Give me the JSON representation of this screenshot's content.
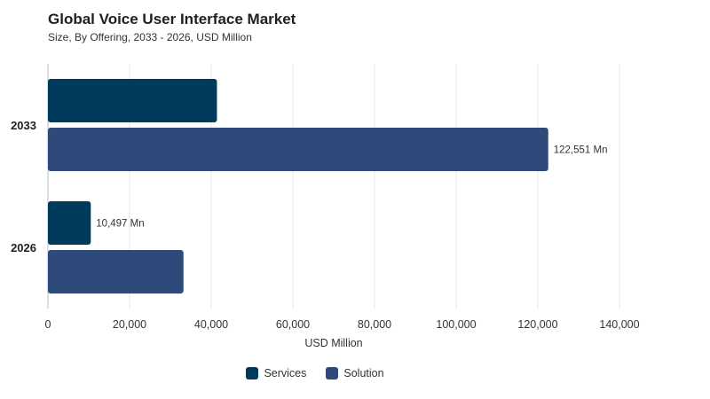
{
  "title": "Global Voice User Interface Market",
  "subtitle": "Size, By Offering, 2033 - 2026, USD Million",
  "colors": {
    "services": "#003b5c",
    "solution": "#2e4a7b"
  },
  "chart_data": {
    "type": "bar",
    "orientation": "horizontal",
    "categories": [
      "2033",
      "2026"
    ],
    "series": [
      {
        "name": "Services",
        "values": [
          41400,
          10497
        ],
        "color": "#003b5c"
      },
      {
        "name": "Solution",
        "values": [
          122551,
          33200
        ],
        "color": "#2e4a7b"
      }
    ],
    "data_labels": [
      {
        "series": "Services",
        "category": "2026",
        "text": "10,497 Mn"
      },
      {
        "series": "Solution",
        "category": "2033",
        "text": "122,551 Mn"
      }
    ],
    "xlabel": "USD Million",
    "ylabel": "",
    "xlim": [
      0,
      140000
    ],
    "xticks": [
      0,
      20000,
      40000,
      60000,
      80000,
      100000,
      120000,
      140000
    ],
    "xtick_labels": [
      "0",
      "20,000",
      "40,000",
      "60,000",
      "80,000",
      "100,000",
      "120,000",
      "140,000"
    ],
    "grid": true,
    "legend": "bottom"
  }
}
